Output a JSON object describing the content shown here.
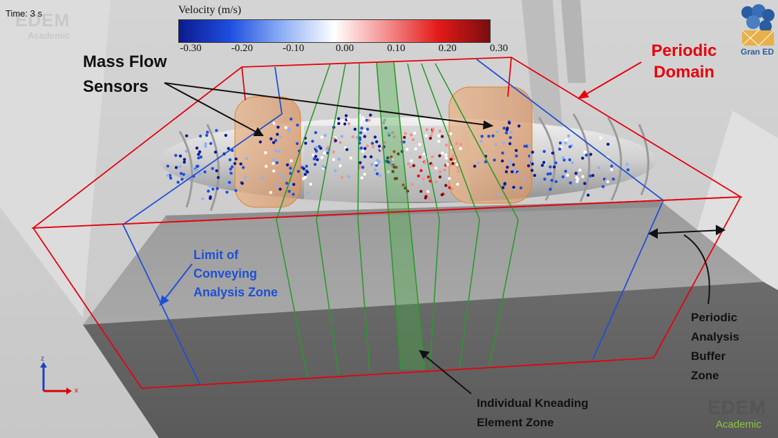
{
  "hud": {
    "time_label": "Time: 3 s",
    "watermark_top": "EDEM",
    "watermark_top_sub": "Academic"
  },
  "colorbar": {
    "title": "Velocity (m/s)",
    "ticks": [
      "-0.30",
      "-0.20",
      "-0.10",
      "0.00",
      "0.10",
      "0.20",
      "0.30"
    ],
    "gradient": [
      "#0c1a8f",
      "#1e4fe0",
      "#8fb0f5",
      "#ffffff",
      "#f58f8f",
      "#e41a1a",
      "#7a0d0d"
    ]
  },
  "annotations": {
    "periodic_domain": "Periodic Domain",
    "mass_flow_sensors": "Mass Flow Sensors",
    "limit_conveying": "Limit of Conveying Analysis Zone",
    "buffer_zone": "Periodic Analysis Buffer Zone",
    "kneading_zone": "Individual Kneading Element Zone"
  },
  "logos": {
    "granta_text": "Gran ED",
    "edem_word": "EDEM",
    "edem_sub": "Academic"
  },
  "axes": {
    "z_label": "z",
    "x_label": "x"
  },
  "colors": {
    "periodic_domain": "#e8000b",
    "conveying_limit": "#1e50d6",
    "kneading_zone": "#2a9a2a",
    "sensor": "#e9a66b"
  }
}
